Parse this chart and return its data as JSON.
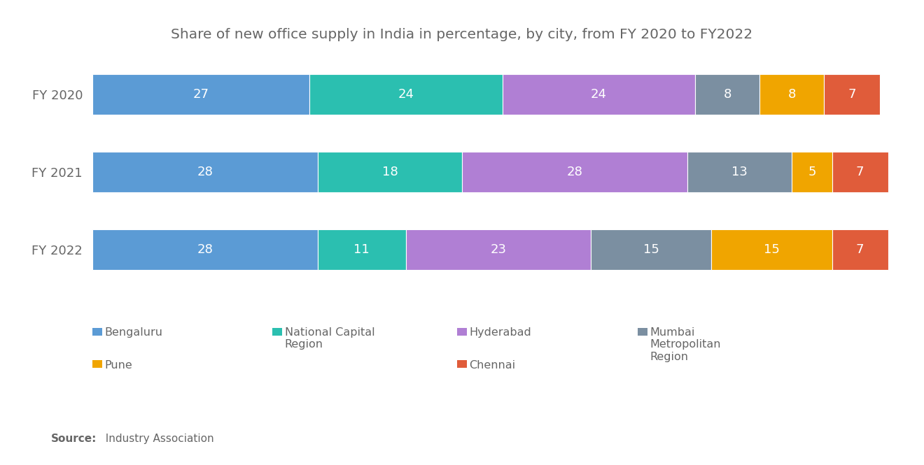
{
  "title": "Share of new office supply in India in percentage, by city, from FY 2020 to FY2022",
  "years": [
    "FY 2020",
    "FY 2021",
    "FY 2022"
  ],
  "categories": [
    "Bengaluru",
    "National Capital\nRegion",
    "Hyderabad",
    "Mumbai\nMetropolitan\nRegion",
    "Pune",
    "Chennai"
  ],
  "colors": [
    "#5B9BD5",
    "#2BBFB0",
    "#B07FD4",
    "#7B8FA1",
    "#F0A500",
    "#E05C3A"
  ],
  "data": {
    "FY 2020": [
      27,
      24,
      24,
      8,
      8,
      7
    ],
    "FY 2021": [
      28,
      18,
      28,
      13,
      5,
      7
    ],
    "FY 2022": [
      28,
      11,
      23,
      15,
      15,
      7
    ]
  },
  "background_color": "#FFFFFF",
  "bar_height": 0.52,
  "title_fontsize": 14.5,
  "label_fontsize": 13,
  "tick_fontsize": 13,
  "legend_fontsize": 11.5,
  "source_bold": "Source:",
  "source_normal": "  Industry Association"
}
